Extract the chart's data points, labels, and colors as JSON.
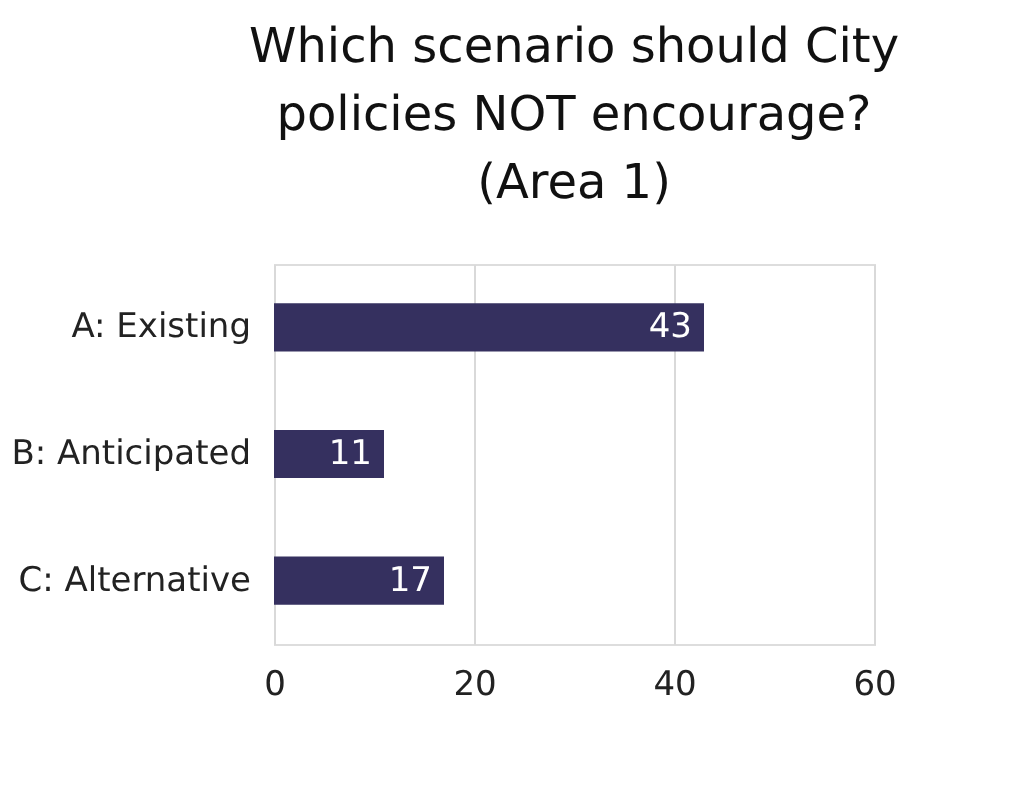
{
  "chart_data": {
    "type": "bar",
    "orientation": "horizontal",
    "title": "Which scenario should City\npolicies NOT encourage?\n(Area 1)",
    "categories": [
      "A: Existing",
      "B: Anticipated",
      "C: Alternative"
    ],
    "values": [
      43,
      11,
      17
    ],
    "color": "#35305f",
    "xlim": [
      0,
      60
    ],
    "xticks": [
      0,
      20,
      40,
      60
    ],
    "grid": "x",
    "data_labels": true
  }
}
